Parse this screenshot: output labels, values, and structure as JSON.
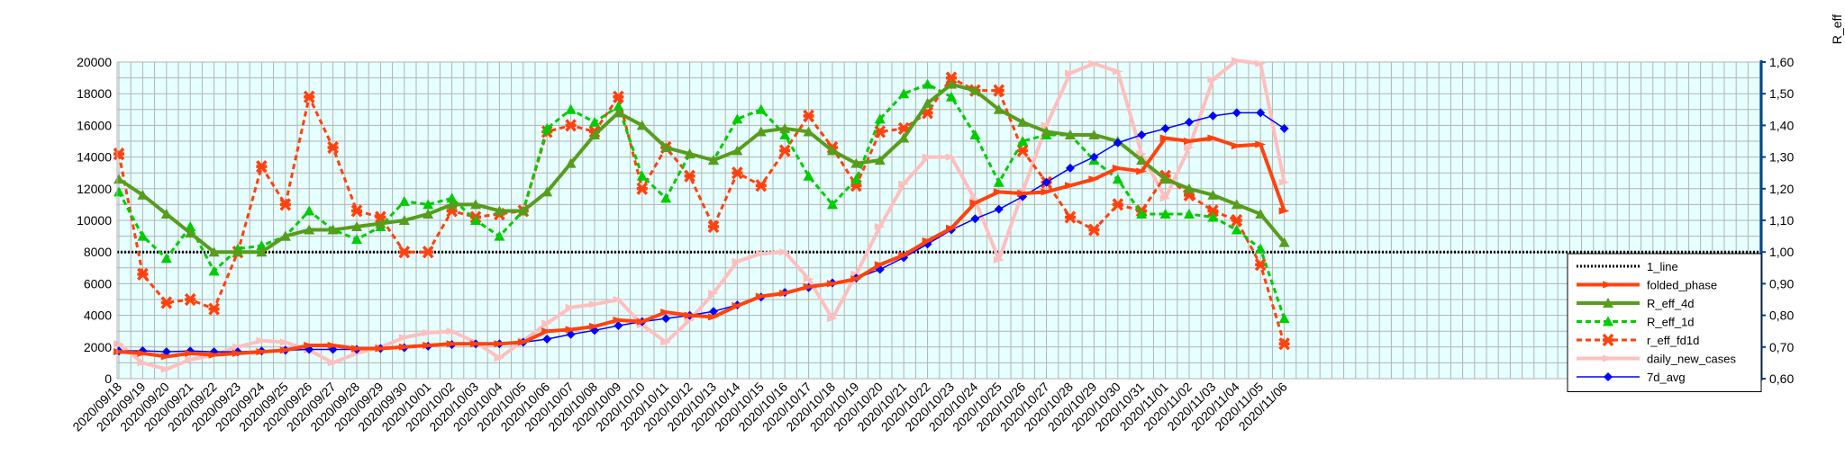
{
  "chart_data": {
    "type": "line",
    "title": "",
    "xlabel": "",
    "ylabel": "",
    "y2label": "R_eff",
    "ylim": [
      0,
      20000
    ],
    "y2lim": [
      0.6,
      1.6
    ],
    "yticks": [
      "0",
      "2000",
      "4000",
      "6000",
      "8000",
      "10000",
      "12000",
      "14000",
      "16000",
      "18000",
      "20000"
    ],
    "y2ticks": [
      "0,60",
      "0,70",
      "0,80",
      "0,90",
      "1,00",
      "1,10",
      "1,20",
      "1,30",
      "1,40",
      "1,50",
      "1,60"
    ],
    "grid": true,
    "legend_position": "right",
    "x": [
      "2020/09/18",
      "2020/09/19",
      "2020/09/20",
      "2020/09/21",
      "2020/09/22",
      "2020/09/23",
      "2020/09/24",
      "2020/09/25",
      "2020/09/26",
      "2020/09/27",
      "2020/09/28",
      "2020/09/29",
      "2020/09/30",
      "2020/10/01",
      "2020/10/02",
      "2020/10/03",
      "2020/10/04",
      "2020/10/05",
      "2020/10/06",
      "2020/10/07",
      "2020/10/08",
      "2020/10/09",
      "2020/10/10",
      "2020/10/11",
      "2020/10/12",
      "2020/10/13",
      "2020/10/14",
      "2020/10/15",
      "2020/10/16",
      "2020/10/17",
      "2020/10/18",
      "2020/10/19",
      "2020/10/20",
      "2020/10/21",
      "2020/10/22",
      "2020/10/23",
      "2020/10/24",
      "2020/10/25",
      "2020/10/26",
      "2020/10/27",
      "2020/10/28",
      "2020/10/29",
      "2020/10/30",
      "2020/10/31",
      "2020/11/01",
      "2020/11/02",
      "2020/11/03",
      "2020/11/04",
      "2020/11/05",
      "2020/11/06"
    ],
    "series": [
      {
        "name": "1_line",
        "axis": "right",
        "color": "#000000",
        "style": "dotted",
        "marker": "none",
        "values": [
          1,
          1,
          1,
          1,
          1,
          1,
          1,
          1,
          1,
          1,
          1,
          1,
          1,
          1,
          1,
          1,
          1,
          1,
          1,
          1,
          1,
          1,
          1,
          1,
          1,
          1,
          1,
          1,
          1,
          1,
          1,
          1,
          1,
          1,
          1,
          1,
          1,
          1,
          1,
          1,
          1,
          1,
          1,
          1,
          1,
          1,
          1,
          1,
          1,
          1
        ]
      },
      {
        "name": "folded_phase",
        "axis": "left",
        "color": "#ff420e",
        "style": "solid",
        "marker": "star",
        "width": 4,
        "values": [
          1700,
          1600,
          1400,
          1600,
          1500,
          1600,
          1700,
          1800,
          2100,
          2100,
          1900,
          1900,
          2000,
          2100,
          2200,
          2200,
          2200,
          2300,
          3000,
          3100,
          3300,
          3700,
          3600,
          4200,
          4000,
          3900,
          4600,
          5200,
          5400,
          5800,
          6000,
          6300,
          7200,
          7800,
          8700,
          9500,
          11100,
          11800,
          11700,
          11800,
          12200,
          12600,
          13300,
          13100,
          15200,
          15000,
          15200,
          14700,
          14800,
          10600
        ]
      },
      {
        "name": "R_eff_4d",
        "axis": "right",
        "color": "#579d1c",
        "style": "solid",
        "marker": "triangle",
        "width": 4,
        "values": [
          1.23,
          1.18,
          1.12,
          1.06,
          1.0,
          1.0,
          1.0,
          1.05,
          1.07,
          1.07,
          1.08,
          1.09,
          1.1,
          1.12,
          1.15,
          1.15,
          1.13,
          1.13,
          1.19,
          1.28,
          1.37,
          1.44,
          1.4,
          1.33,
          1.31,
          1.29,
          1.32,
          1.38,
          1.39,
          1.38,
          1.32,
          1.28,
          1.29,
          1.36,
          1.47,
          1.53,
          1.51,
          1.45,
          1.41,
          1.38,
          1.37,
          1.37,
          1.35,
          1.29,
          1.23,
          1.2,
          1.18,
          1.15,
          1.12,
          1.03
        ]
      },
      {
        "name": "R_eff_1d",
        "axis": "right",
        "color": "#00cc00",
        "style": "dashed",
        "marker": "triangle",
        "width": 3,
        "values": [
          1.19,
          1.05,
          0.98,
          1.08,
          0.94,
          1.01,
          1.02,
          1.05,
          1.13,
          1.07,
          1.04,
          1.08,
          1.16,
          1.15,
          1.17,
          1.1,
          1.05,
          1.13,
          1.39,
          1.45,
          1.41,
          1.46,
          1.24,
          1.17,
          1.31,
          1.29,
          1.42,
          1.45,
          1.37,
          1.24,
          1.15,
          1.23,
          1.42,
          1.5,
          1.53,
          1.49,
          1.37,
          1.22,
          1.35,
          1.37,
          1.37,
          1.29,
          1.23,
          1.12,
          1.12,
          1.12,
          1.11,
          1.07,
          1.01,
          0.79
        ]
      },
      {
        "name": "r_eff_fd1d",
        "axis": "right",
        "color": "#ff420e",
        "style": "dashed",
        "marker": "cross",
        "width": 3,
        "values": [
          1.31,
          0.93,
          0.84,
          0.85,
          0.82,
          1.0,
          1.27,
          1.15,
          1.49,
          1.33,
          1.13,
          1.11,
          1.0,
          1.0,
          1.13,
          1.11,
          1.12,
          1.13,
          1.38,
          1.4,
          1.38,
          1.49,
          1.2,
          1.33,
          1.24,
          1.08,
          1.25,
          1.21,
          1.32,
          1.43,
          1.33,
          1.21,
          1.38,
          1.39,
          1.44,
          1.55,
          1.51,
          1.51,
          1.32,
          1.22,
          1.11,
          1.07,
          1.15,
          1.13,
          1.24,
          1.18,
          1.13,
          1.1,
          0.96,
          0.71
        ]
      },
      {
        "name": "daily_new_cases",
        "axis": "left",
        "color": "#ffbfbf",
        "style": "solid",
        "marker": "star",
        "width": 4,
        "values": [
          2200,
          1000,
          600,
          1200,
          1500,
          2000,
          2400,
          2300,
          1800,
          1000,
          1600,
          2000,
          2600,
          2900,
          3000,
          2300,
          1300,
          2400,
          3500,
          4500,
          4700,
          5000,
          3400,
          2300,
          3700,
          5400,
          7400,
          7900,
          8000,
          6300,
          3800,
          6600,
          9600,
          12300,
          14000,
          14000,
          11300,
          7500,
          11800,
          16000,
          19300,
          19900,
          19400,
          14200,
          11400,
          14600,
          18900,
          20100,
          19900,
          12400
        ]
      },
      {
        "name": "7d_avg",
        "axis": "left",
        "color": "#0000ff",
        "style": "solid",
        "marker": "diamond",
        "width": 1.5,
        "values": [
          1750,
          1760,
          1700,
          1750,
          1700,
          1700,
          1750,
          1800,
          1850,
          1850,
          1850,
          1900,
          1950,
          2050,
          2150,
          2200,
          2200,
          2300,
          2500,
          2800,
          3050,
          3350,
          3600,
          3800,
          4000,
          4250,
          4650,
          5150,
          5450,
          5750,
          6050,
          6350,
          6900,
          7650,
          8500,
          9400,
          10100,
          10700,
          11500,
          12400,
          13300,
          14000,
          14900,
          15400,
          15800,
          16200,
          16600,
          16800,
          16800,
          15800
        ]
      }
    ]
  }
}
